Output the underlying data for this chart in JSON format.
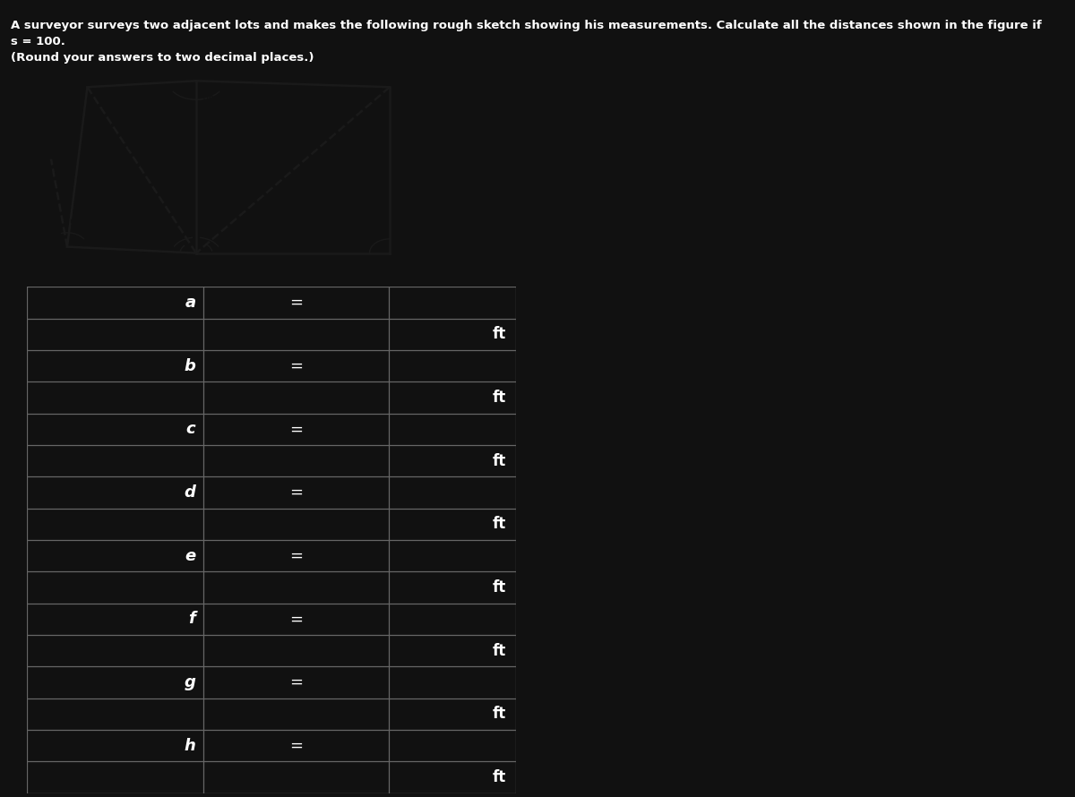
{
  "title_line1": "A surveyor surveys two adjacent lots and makes the following rough sketch showing his measurements. Calculate all the distances shown in the figure if",
  "title_line2": "s = 100.",
  "title_line3": "(Round your answers to two decimal places.)",
  "background_color": "#111111",
  "sketch_bg": "#a8c8c8",
  "text_color": "#ffffff",
  "sketch_line_color": "#1a1a1a",
  "table_line_color": "#666666",
  "variables": [
    "a",
    "b",
    "c",
    "d",
    "e",
    "f",
    "g",
    "h"
  ]
}
